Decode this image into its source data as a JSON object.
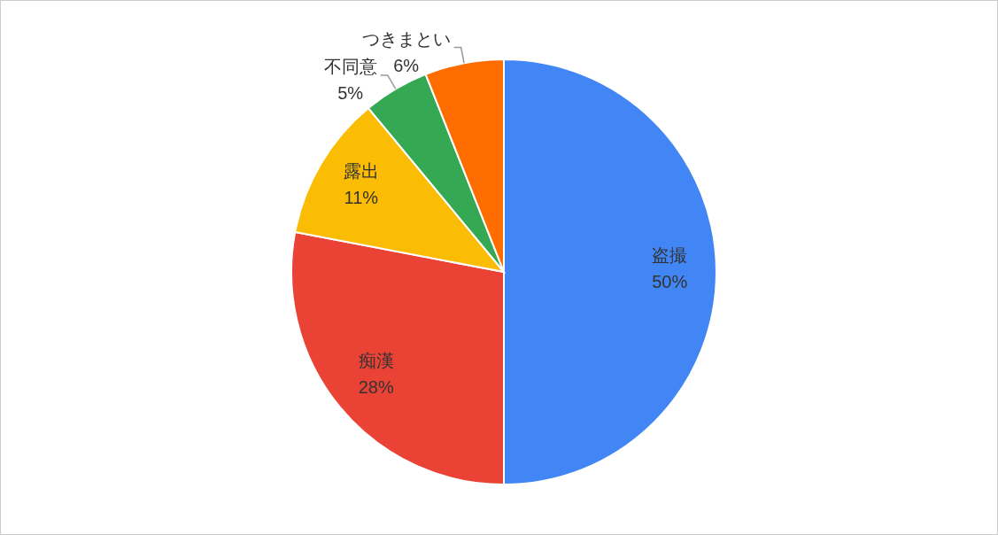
{
  "chart_data": {
    "type": "pie",
    "categories": [
      "盗撮",
      "痴漢",
      "露出",
      "不同意",
      "つきまとい"
    ],
    "values": [
      50,
      28,
      11,
      5,
      6
    ],
    "value_labels": [
      "50%",
      "28%",
      "11%",
      "5%",
      "6%"
    ],
    "colors": [
      "#4285f4",
      "#ea4335",
      "#fbbc04",
      "#34a853",
      "#ff6d01"
    ]
  }
}
